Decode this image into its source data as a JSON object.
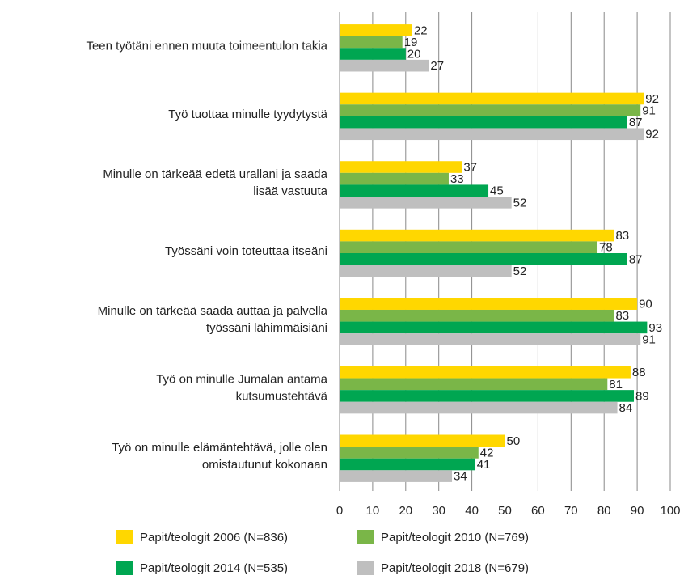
{
  "chart_data": {
    "type": "bar",
    "orientation": "horizontal",
    "categories": [
      [
        "Teen työtäni ennen muuta toimeentulon takia"
      ],
      [
        "Työ tuottaa minulle tyydytystä"
      ],
      [
        "Minulle on tärkeää edetä urallani ja saada",
        "lisää vastuuta"
      ],
      [
        "Työssäni voin toteuttaa itseäni"
      ],
      [
        "Minulle on tärkeää saada auttaa ja palvella",
        "työssäni lähimmäisiäni"
      ],
      [
        "Työ on minulle Jumalan antama",
        "kutsumustehtävä"
      ],
      [
        "Työ on minulle elämäntehtävä, jolle olen",
        "omistautunut kokonaan"
      ]
    ],
    "series": [
      {
        "name": "Papit/teologit 2006 (N=836)",
        "color": "#ffd700",
        "values": [
          22,
          92,
          37,
          83,
          90,
          88,
          50
        ]
      },
      {
        "name": "Papit/teologit 2010 (N=769)",
        "color": "#7ab648",
        "values": [
          19,
          91,
          33,
          78,
          83,
          81,
          42
        ]
      },
      {
        "name": "Papit/teologit 2014 (N=535)",
        "color": "#00a651",
        "values": [
          20,
          87,
          45,
          87,
          93,
          89,
          41
        ]
      },
      {
        "name": "Papit/teologit 2018 (N=679)",
        "color": "#bfbfbf",
        "values": [
          27,
          92,
          52,
          52,
          91,
          84,
          34
        ]
      }
    ],
    "xlim": [
      0,
      100
    ],
    "xticks": [
      0,
      10,
      20,
      30,
      40,
      50,
      60,
      70,
      80,
      90,
      100
    ],
    "grid": true
  }
}
